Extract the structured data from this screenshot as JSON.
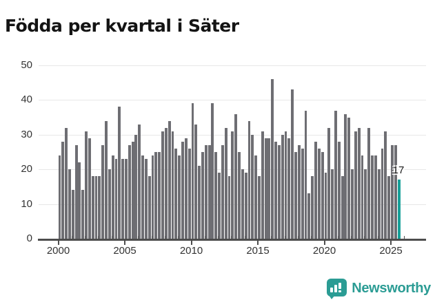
{
  "title": "Födda per kvartal i Säter",
  "chart_data": {
    "type": "bar",
    "title": "Födda per kvartal i Säter",
    "xlabel": "",
    "ylabel": "",
    "x_start": "2000-Q1",
    "x_end": "2025-Q3",
    "x_tick_labels": [
      "2000",
      "2005",
      "2010",
      "2015",
      "2020",
      "2025"
    ],
    "y_ticks": [
      0,
      10,
      20,
      30,
      40,
      50
    ],
    "ylim": [
      0,
      50
    ],
    "grid": "horizontal",
    "legend_position": "none",
    "bar_color": "#6e6e73",
    "highlight_color": "#17a099",
    "highlight_last": true,
    "last_value_label": "17",
    "series": [
      {
        "name": "Födda per kvartal",
        "values": [
          24,
          28,
          32,
          20,
          14,
          27,
          22,
          14,
          31,
          29,
          18,
          18,
          18,
          27,
          34,
          20,
          24,
          23,
          38,
          23,
          23,
          27,
          28,
          30,
          33,
          24,
          23,
          18,
          24,
          25,
          25,
          31,
          32,
          34,
          31,
          26,
          24,
          28,
          29,
          26,
          39,
          33,
          21,
          25,
          27,
          27,
          39,
          25,
          19,
          27,
          32,
          18,
          31,
          36,
          25,
          20,
          19,
          34,
          30,
          24,
          18,
          31,
          29,
          29,
          46,
          28,
          27,
          30,
          31,
          29,
          43,
          25,
          27,
          26,
          37,
          13,
          18,
          28,
          26,
          25,
          19,
          32,
          20,
          37,
          28,
          18,
          36,
          35,
          20,
          31,
          32,
          24,
          20,
          32,
          24,
          24,
          20,
          26,
          31,
          18,
          27,
          27,
          17
        ]
      }
    ]
  },
  "logo": {
    "text": "Newsworthy",
    "color": "#2b9c94",
    "icon": "newsworthy-speech-bubble-bar-chart-icon"
  }
}
